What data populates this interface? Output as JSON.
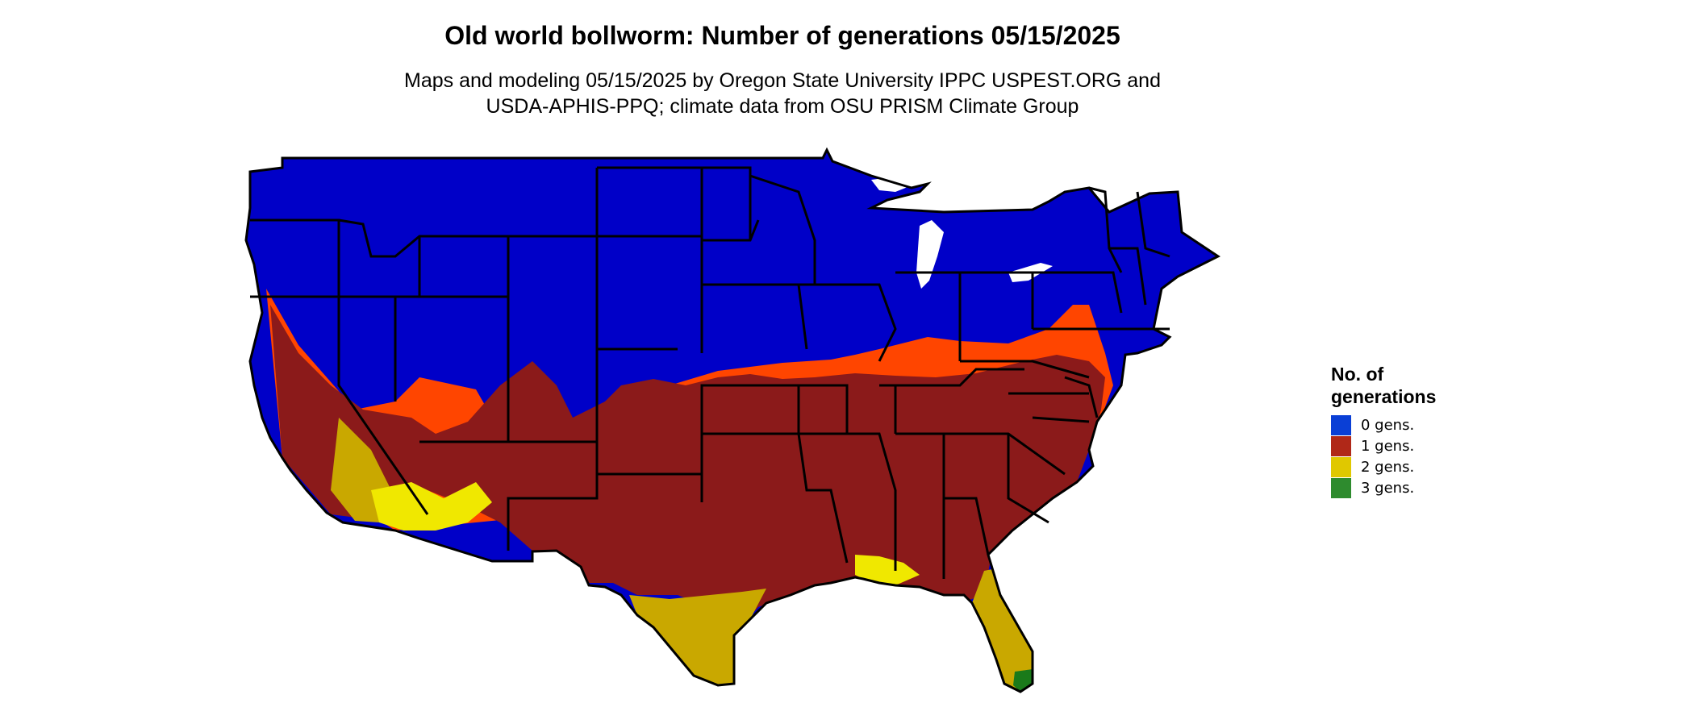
{
  "title": "Old world bollworm: Number of generations 05/15/2025",
  "subtitle": [
    "Maps and modeling 05/15/2025 by Oregon State University IPPC USPEST.ORG and",
    "USDA-APHIS-PPQ; climate data from OSU PRISM Climate Group"
  ],
  "legend": {
    "title_line1": "No. of",
    "title_line2": "generations",
    "items": [
      {
        "label": "0 gens.",
        "color": "#0a3fd6"
      },
      {
        "label": "1 gens.",
        "color": "#b02818"
      },
      {
        "label": "2 gens.",
        "color": "#e0c800"
      },
      {
        "label": "3 gens.",
        "color": "#2e8b2e"
      }
    ]
  },
  "map_colors": {
    "zero_gens": "#0000c8",
    "one_gen_dark": "#8b1a1a",
    "one_gen_light": "#ff4500",
    "two_gens": "#c9a800",
    "two_gens_bright": "#f0e800",
    "three_gens": "#1a7a1a",
    "borders": "#000000"
  }
}
